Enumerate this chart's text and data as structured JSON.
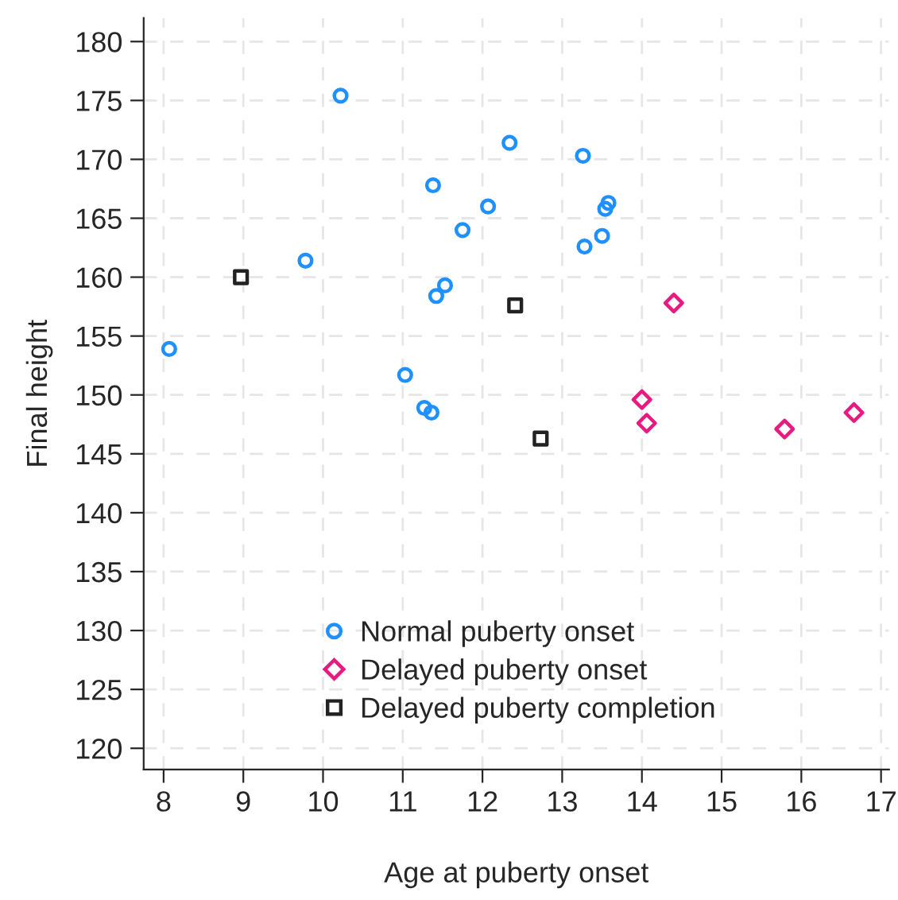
{
  "chart_data": {
    "type": "scatter",
    "xlabel": "Age at puberty onset",
    "ylabel": "Final height",
    "xlim": [
      7.75,
      17.1
    ],
    "ylim": [
      118.2,
      182
    ],
    "xticks": [
      8,
      9,
      10,
      11,
      12,
      13,
      14,
      15,
      16,
      17
    ],
    "yticks": [
      120,
      125,
      130,
      135,
      140,
      145,
      150,
      155,
      160,
      165,
      170,
      175,
      180
    ],
    "grid": true,
    "legend": "bottom",
    "series": [
      {
        "name": "Normal puberty onset",
        "color": "#1e90ff",
        "marker": "circle",
        "x": [
          8.07,
          10.22,
          9.78,
          12.34,
          13.26,
          11.38,
          12.07,
          13.58,
          13.54,
          11.75,
          13.5,
          13.28,
          11.53,
          11.42,
          11.03,
          11.27,
          11.36
        ],
        "values": [
          153.9,
          175.4,
          161.4,
          171.4,
          170.3,
          167.8,
          166.0,
          166.3,
          165.8,
          164.0,
          163.5,
          162.6,
          159.3,
          158.4,
          151.7,
          148.9,
          148.5
        ]
      },
      {
        "name": "Delayed puberty onset",
        "color": "#e8197f",
        "marker": "diamond",
        "x": [
          14.4,
          14.0,
          14.06,
          15.79,
          16.66
        ],
        "values": [
          157.8,
          149.6,
          147.6,
          147.1,
          148.5
        ]
      },
      {
        "name": "Delayed puberty completion",
        "color": "#222222",
        "marker": "square",
        "x": [
          8.97,
          12.41,
          12.73
        ],
        "values": [
          160.0,
          157.6,
          146.3
        ]
      }
    ]
  }
}
